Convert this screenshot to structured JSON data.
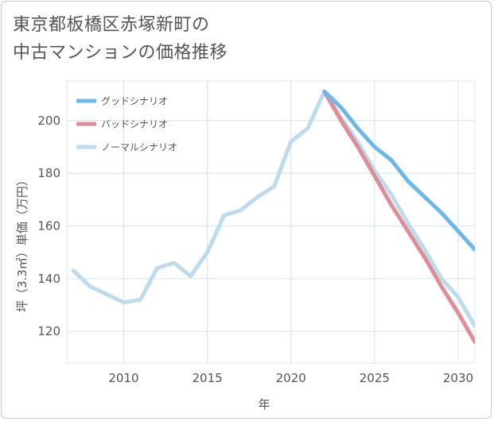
{
  "title": {
    "line1": "東京都板橋区赤塚新町の",
    "line2": "中古マンションの価格推移"
  },
  "chart_data": {
    "type": "line",
    "xlabel": "年",
    "ylabel": "坪（3.3㎡）単価（万円）",
    "xlim": [
      2006.6,
      2031
    ],
    "ylim": [
      108,
      215
    ],
    "x_ticks": [
      2010,
      2015,
      2020,
      2025,
      2030
    ],
    "y_ticks": [
      120,
      140,
      160,
      180,
      200
    ],
    "grid": true,
    "legend_position": "top-left",
    "series": [
      {
        "name": "グッドシナリオ",
        "color": "#6cb8ec",
        "x": [
          2022,
          2023,
          2024,
          2025,
          2026,
          2027,
          2028,
          2029,
          2030,
          2031
        ],
        "values": [
          211,
          205,
          197,
          190,
          185,
          177,
          171,
          165,
          158,
          151
        ]
      },
      {
        "name": "バッドシナリオ",
        "color": "#df8c95",
        "x": [
          2022,
          2023,
          2024,
          2025,
          2026,
          2027,
          2028,
          2029,
          2030,
          2031
        ],
        "values": [
          211,
          200,
          190,
          179,
          168,
          158,
          148,
          137,
          127,
          116
        ]
      },
      {
        "name": "ノーマルシナリオ",
        "color": "#bcdcee",
        "x": [
          2007,
          2008,
          2009,
          2010,
          2011,
          2012,
          2013,
          2014,
          2015,
          2016,
          2017,
          2018,
          2019,
          2020,
          2021,
          2022,
          2023,
          2024,
          2025,
          2026,
          2027,
          2028,
          2029,
          2030,
          2031
        ],
        "values": [
          143,
          137,
          134,
          131,
          132,
          144,
          146,
          141,
          150,
          164,
          166,
          171,
          175,
          192,
          197,
          211,
          201,
          192,
          181,
          172,
          161,
          151,
          140,
          133,
          122
        ]
      }
    ]
  }
}
